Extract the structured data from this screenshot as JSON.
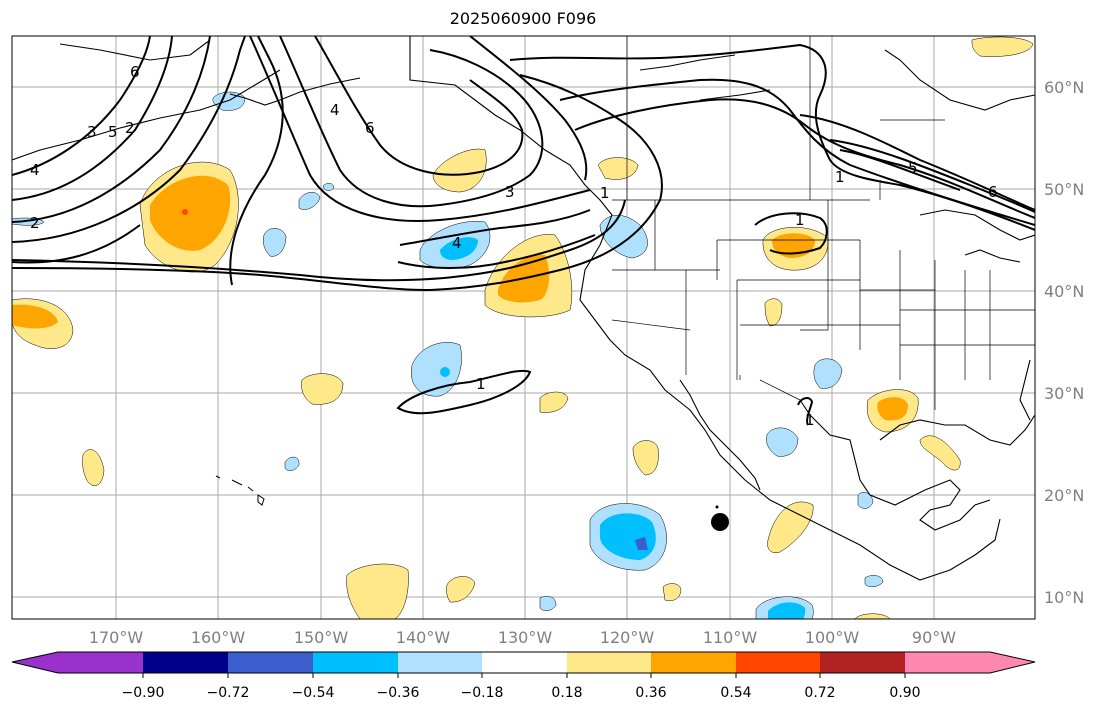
{
  "title": "2025060900 F096",
  "map": {
    "lon_labels": [
      "170°W",
      "160°W",
      "150°W",
      "140°W",
      "130°W",
      "120°W",
      "110°W",
      "100°W",
      "90°W"
    ],
    "lat_labels": [
      "60°N",
      "50°N",
      "40°N",
      "30°N",
      "20°N",
      "10°N"
    ],
    "contour_labels": [
      "6",
      "5",
      "4",
      "3",
      "2",
      "4",
      "6",
      "3",
      "4",
      "1",
      "1",
      "5",
      "6",
      "1",
      "1",
      "2",
      "1"
    ]
  },
  "colorbar": {
    "ticks": [
      "−0.90",
      "−0.72",
      "−0.54",
      "−0.36",
      "−0.18",
      "0.18",
      "0.36",
      "0.54",
      "0.72",
      "0.90"
    ],
    "colors": [
      "#9932cc",
      "#00008b",
      "#3a5fcd",
      "#00bfff",
      "#afe1ff",
      "#ffffff",
      "#ffe88a",
      "#ffa500",
      "#ff4500",
      "#b22222",
      "#ff88b0"
    ]
  }
}
